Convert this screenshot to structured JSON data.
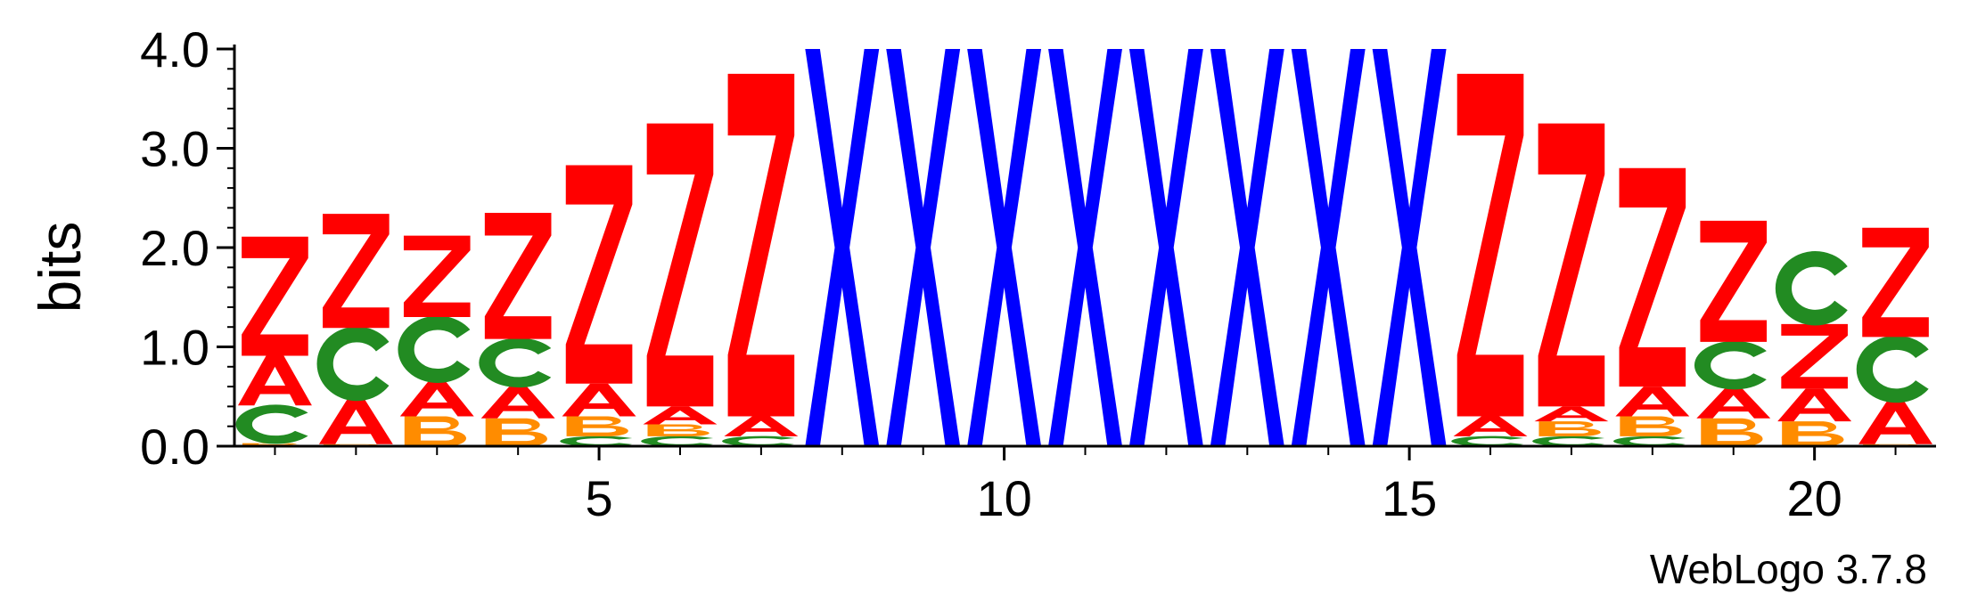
{
  "chart_data": {
    "type": "sequence-logo",
    "ylabel": "bits",
    "ylim": [
      0,
      4.15
    ],
    "y_ticks": [
      {
        "value": 0,
        "label": "0.0"
      },
      {
        "value": 1,
        "label": "1.0"
      },
      {
        "value": 2,
        "label": "2.0"
      },
      {
        "value": 3,
        "label": "3.0"
      },
      {
        "value": 4,
        "label": "4.0"
      }
    ],
    "x_ticks": [
      {
        "value": 5,
        "label": "5"
      },
      {
        "value": 10,
        "label": "10"
      },
      {
        "value": 15,
        "label": "15"
      },
      {
        "value": 20,
        "label": "20"
      }
    ],
    "colors": {
      "Z": "#ff0000",
      "A": "#ff0000",
      "C": "#228b22",
      "B": "#ff8c00",
      "X": "#0000ff"
    },
    "positions": [
      {
        "pos": 1,
        "stack": [
          {
            "letter": "B",
            "height": 0.03
          },
          {
            "letter": "C",
            "height": 0.38
          },
          {
            "letter": "A",
            "height": 0.5
          },
          {
            "letter": "Z",
            "height": 1.2
          }
        ]
      },
      {
        "pos": 2,
        "stack": [
          {
            "letter": "B",
            "height": 0.02
          },
          {
            "letter": "A",
            "height": 0.45
          },
          {
            "letter": "C",
            "height": 0.72
          },
          {
            "letter": "Z",
            "height": 1.15
          }
        ]
      },
      {
        "pos": 3,
        "stack": [
          {
            "letter": "B",
            "height": 0.3
          },
          {
            "letter": "A",
            "height": 0.35
          },
          {
            "letter": "C",
            "height": 0.65
          },
          {
            "letter": "Z",
            "height": 0.82
          }
        ]
      },
      {
        "pos": 4,
        "stack": [
          {
            "letter": "B",
            "height": 0.28
          },
          {
            "letter": "A",
            "height": 0.32
          },
          {
            "letter": "C",
            "height": 0.48
          },
          {
            "letter": "Z",
            "height": 1.27
          }
        ]
      },
      {
        "pos": 5,
        "stack": [
          {
            "letter": "C",
            "height": 0.1
          },
          {
            "letter": "B",
            "height": 0.2
          },
          {
            "letter": "A",
            "height": 0.33
          },
          {
            "letter": "Z",
            "height": 2.2
          }
        ]
      },
      {
        "pos": 6,
        "stack": [
          {
            "letter": "C",
            "height": 0.1
          },
          {
            "letter": "B",
            "height": 0.12
          },
          {
            "letter": "A",
            "height": 0.18
          },
          {
            "letter": "Z",
            "height": 2.85
          }
        ]
      },
      {
        "pos": 7,
        "stack": [
          {
            "letter": "C",
            "height": 0.1
          },
          {
            "letter": "A",
            "height": 0.2
          },
          {
            "letter": "Z",
            "height": 3.45
          }
        ]
      },
      {
        "pos": 8,
        "stack": [
          {
            "letter": "X",
            "height": 4.0
          }
        ]
      },
      {
        "pos": 9,
        "stack": [
          {
            "letter": "X",
            "height": 4.0
          }
        ]
      },
      {
        "pos": 10,
        "stack": [
          {
            "letter": "X",
            "height": 4.0
          }
        ]
      },
      {
        "pos": 11,
        "stack": [
          {
            "letter": "X",
            "height": 4.0
          }
        ]
      },
      {
        "pos": 12,
        "stack": [
          {
            "letter": "X",
            "height": 4.0
          }
        ]
      },
      {
        "pos": 13,
        "stack": [
          {
            "letter": "X",
            "height": 4.0
          }
        ]
      },
      {
        "pos": 14,
        "stack": [
          {
            "letter": "X",
            "height": 4.0
          }
        ]
      },
      {
        "pos": 15,
        "stack": [
          {
            "letter": "X",
            "height": 4.0
          }
        ]
      },
      {
        "pos": 16,
        "stack": [
          {
            "letter": "C",
            "height": 0.1
          },
          {
            "letter": "A",
            "height": 0.2
          },
          {
            "letter": "Z",
            "height": 3.45
          }
        ]
      },
      {
        "pos": 17,
        "stack": [
          {
            "letter": "C",
            "height": 0.1
          },
          {
            "letter": "B",
            "height": 0.15
          },
          {
            "letter": "A",
            "height": 0.15
          },
          {
            "letter": "Z",
            "height": 2.85
          }
        ]
      },
      {
        "pos": 18,
        "stack": [
          {
            "letter": "C",
            "height": 0.1
          },
          {
            "letter": "B",
            "height": 0.2
          },
          {
            "letter": "A",
            "height": 0.3
          },
          {
            "letter": "Z",
            "height": 2.2
          }
        ]
      },
      {
        "pos": 19,
        "stack": [
          {
            "letter": "B",
            "height": 0.28
          },
          {
            "letter": "A",
            "height": 0.3
          },
          {
            "letter": "C",
            "height": 0.47
          },
          {
            "letter": "Z",
            "height": 1.22
          }
        ]
      },
      {
        "pos": 20,
        "stack": [
          {
            "letter": "B",
            "height": 0.25
          },
          {
            "letter": "A",
            "height": 0.33
          },
          {
            "letter": "Z",
            "height": 0.65
          },
          {
            "letter": "C",
            "height": 0.72
          }
        ]
      },
      {
        "pos": 21,
        "stack": [
          {
            "letter": "B",
            "height": 0.02
          },
          {
            "letter": "A",
            "height": 0.43
          },
          {
            "letter": "C",
            "height": 0.65
          },
          {
            "letter": "Z",
            "height": 1.1
          }
        ]
      }
    ]
  },
  "credit": "WebLogo 3.7.8"
}
